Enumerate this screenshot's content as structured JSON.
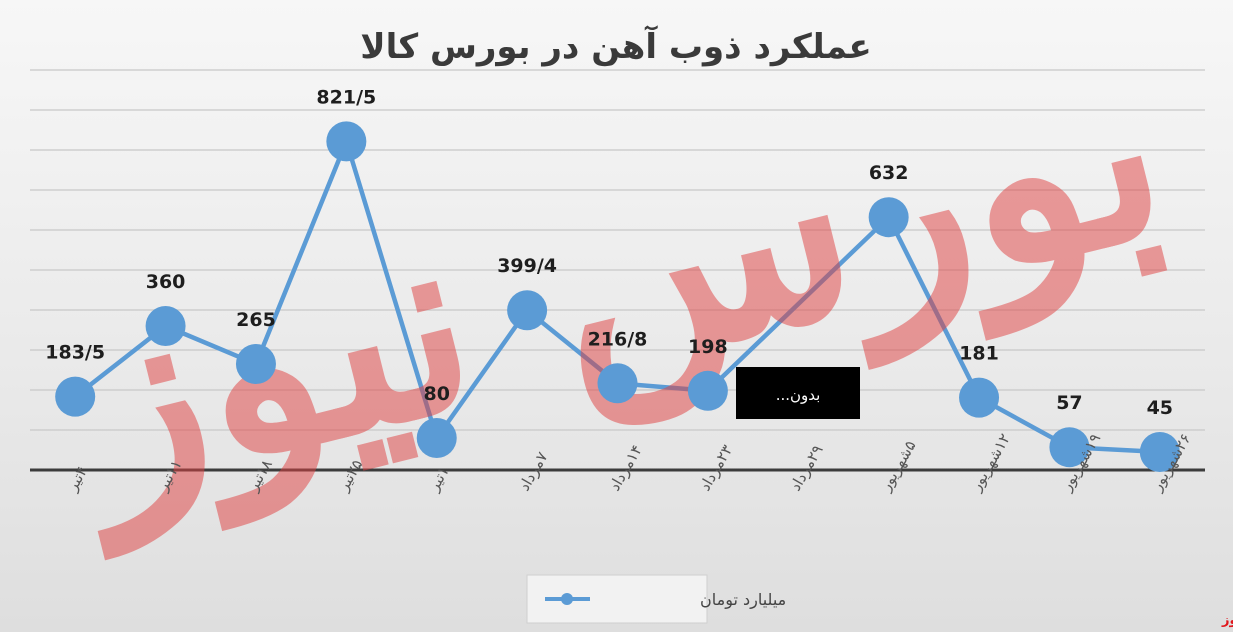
{
  "chart_data": {
    "type": "line",
    "title": "عملکرد ذوب آهن در بورس کالا",
    "categories": [
      "۴تیر",
      "۱۱تیر",
      "۱۸تیر",
      "۲۵تیر",
      "۱تیر",
      "۷مرداد",
      "۱۴مرداد",
      "۲۳مرداد",
      "۲۹مرداد",
      "۵شهریور",
      "۱۲شهریور",
      "۱۹شهریور",
      "۲۶شهریور"
    ],
    "series": [
      {
        "name": "میلیارد تومان",
        "values": [
          183.5,
          360,
          265,
          821.5,
          80,
          399.4,
          216.8,
          198,
          null,
          632,
          181,
          57,
          45
        ],
        "labels": [
          "183/5",
          "360",
          "265",
          "821/5",
          "80",
          "399/4",
          "216/8",
          "198",
          "",
          "632",
          "181",
          "57",
          "45"
        ],
        "color": "#5b9bd5"
      }
    ],
    "ylim": [
      0,
      1000
    ],
    "grid": true,
    "legend_position": "bottom",
    "annotation": "بدون..."
  },
  "logo": "بورس نیوز",
  "watermark": "بورس نیوز"
}
